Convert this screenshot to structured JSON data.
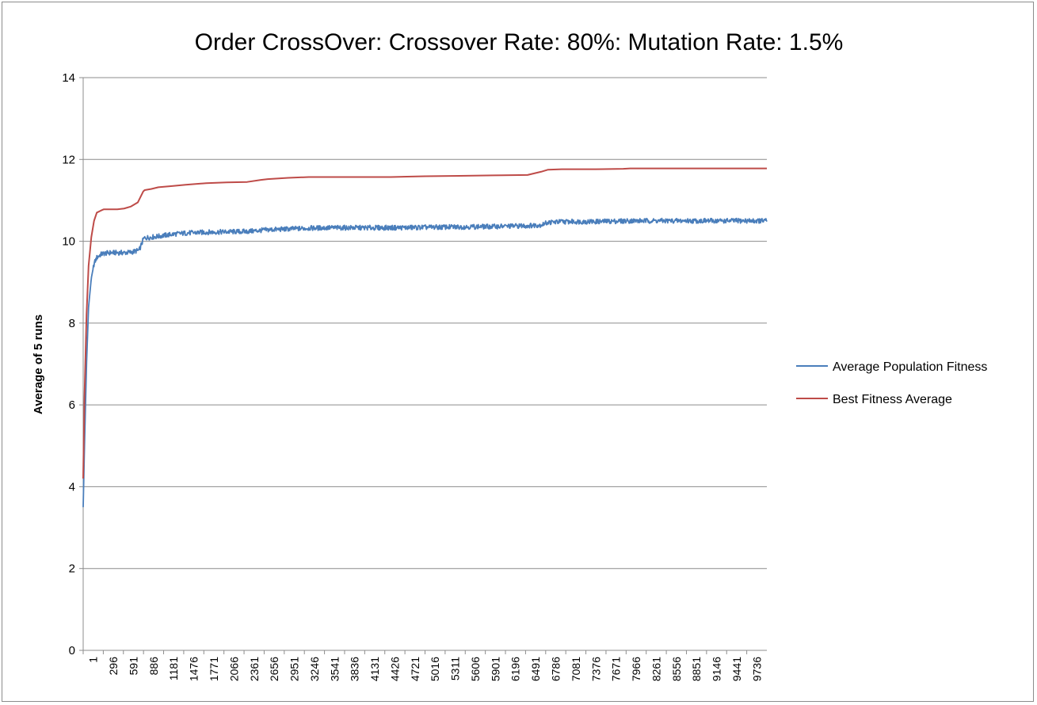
{
  "chart_data": {
    "type": "line",
    "title": "Order CrossOver: Crossover Rate: 80%: Mutation Rate: 1.5%",
    "xlabel": "",
    "ylabel": "Average of 5 runs",
    "ylim": [
      0,
      14
    ],
    "yticks": [
      0,
      2,
      4,
      6,
      8,
      10,
      12,
      14
    ],
    "xlim": [
      1,
      10000
    ],
    "xtick_labels": [
      1,
      296,
      591,
      886,
      1181,
      1476,
      1771,
      2066,
      2361,
      2656,
      2951,
      3246,
      3541,
      3836,
      4131,
      4426,
      4721,
      5016,
      5311,
      5606,
      5901,
      6196,
      6491,
      6786,
      7081,
      7376,
      7671,
      7966,
      8261,
      8556,
      8851,
      9146,
      9441,
      9736
    ],
    "grid": "horizontal",
    "legend_position": "right",
    "series": [
      {
        "name": "Average Population Fitness",
        "color": "#4a7ebb",
        "x": [
          1,
          20,
          50,
          80,
          120,
          160,
          200,
          260,
          300,
          400,
          500,
          600,
          700,
          820,
          860,
          880,
          900,
          1000,
          1100,
          1300,
          1500,
          1800,
          2100,
          2400,
          2700,
          3000,
          3300,
          3600,
          4000,
          4500,
          5000,
          5500,
          6000,
          6500,
          6700,
          6800,
          7000,
          7500,
          8000,
          8500,
          9000,
          9500,
          10000
        ],
        "y": [
          3.5,
          5.0,
          7.0,
          8.4,
          9.1,
          9.45,
          9.6,
          9.68,
          9.7,
          9.72,
          9.72,
          9.72,
          9.73,
          9.78,
          9.95,
          10.05,
          10.08,
          10.1,
          10.12,
          10.17,
          10.2,
          10.22,
          10.23,
          10.24,
          10.28,
          10.3,
          10.32,
          10.33,
          10.33,
          10.33,
          10.34,
          10.35,
          10.36,
          10.38,
          10.4,
          10.46,
          10.48,
          10.48,
          10.5,
          10.5,
          10.5,
          10.5,
          10.5
        ]
      },
      {
        "name": "Best Fitness Average",
        "color": "#be4b48",
        "x": [
          1,
          20,
          50,
          80,
          120,
          160,
          200,
          260,
          300,
          400,
          500,
          600,
          700,
          800,
          880,
          900,
          1000,
          1100,
          1300,
          1500,
          1800,
          2100,
          2400,
          2600,
          2700,
          3000,
          3300,
          3600,
          4000,
          4500,
          5000,
          5500,
          6000,
          6500,
          6700,
          6800,
          7000,
          7500,
          7900,
          8000,
          8500,
          9000,
          9500,
          10000
        ],
        "y": [
          4.2,
          6.2,
          8.2,
          9.4,
          10.1,
          10.5,
          10.7,
          10.75,
          10.78,
          10.78,
          10.78,
          10.8,
          10.85,
          10.95,
          11.22,
          11.25,
          11.28,
          11.32,
          11.35,
          11.38,
          11.42,
          11.44,
          11.45,
          11.5,
          11.52,
          11.55,
          11.57,
          11.57,
          11.57,
          11.57,
          11.59,
          11.6,
          11.61,
          11.62,
          11.7,
          11.75,
          11.76,
          11.76,
          11.77,
          11.78,
          11.78,
          11.78,
          11.78,
          11.78
        ]
      }
    ]
  }
}
